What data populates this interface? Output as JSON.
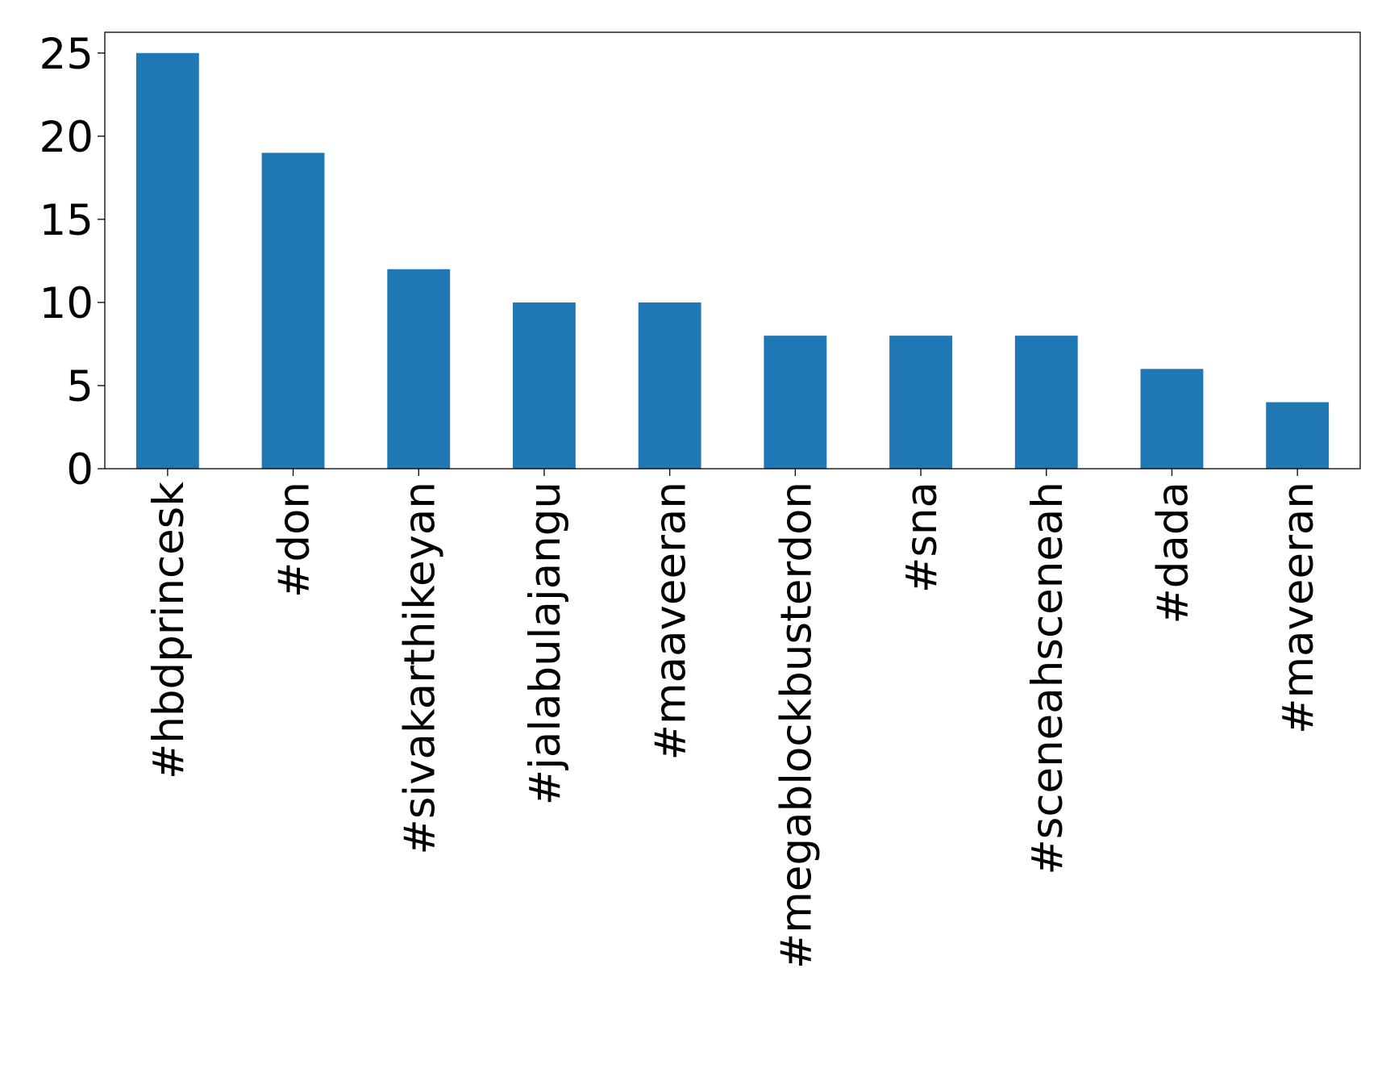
{
  "chart_data": {
    "type": "bar",
    "categories": [
      "#hbdprincesk",
      "#don",
      "#sivakarthikeyan",
      "#jalabulajangu",
      "#maaveeran",
      "#megablockbusterdon",
      "#sna",
      "#sceneahsceneah",
      "#dada",
      "#maveeran"
    ],
    "values": [
      25,
      19,
      12,
      10,
      10,
      8,
      8,
      8,
      6,
      4
    ],
    "color": "#1f77b4",
    "ylim": [
      0,
      26.25
    ],
    "yticks": [
      0,
      5,
      10,
      15,
      20,
      25
    ],
    "grid": false
  }
}
